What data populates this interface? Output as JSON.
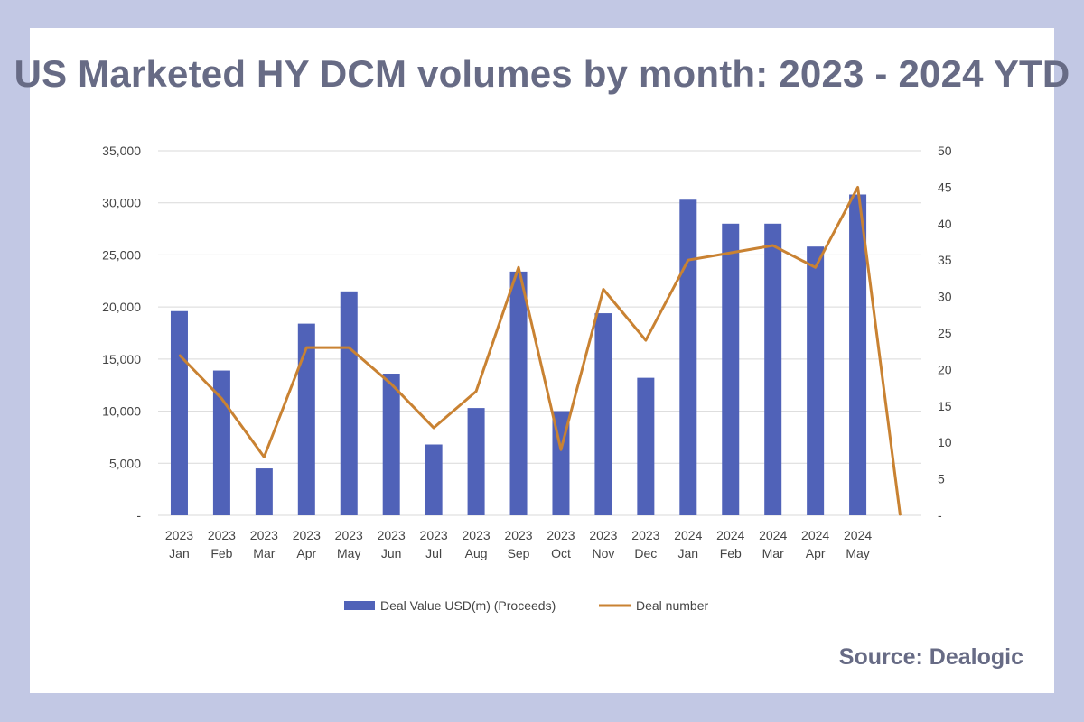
{
  "title": "US Marketed HY DCM volumes by month: 2023 - 2024 YTD",
  "source": "Source: Dealogic",
  "colors": {
    "background": "#c2c8e4",
    "panel": "#ffffff",
    "bar": "#5062b8",
    "line": "#c98232",
    "title": "#676b85",
    "grid": "#d9d9d9"
  },
  "chart_data": {
    "type": "bar",
    "categories": [
      [
        "2023",
        "Jan"
      ],
      [
        "2023",
        "Feb"
      ],
      [
        "2023",
        "Mar"
      ],
      [
        "2023",
        "Apr"
      ],
      [
        "2023",
        "May"
      ],
      [
        "2023",
        "Jun"
      ],
      [
        "2023",
        "Jul"
      ],
      [
        "2023",
        "Aug"
      ],
      [
        "2023",
        "Sep"
      ],
      [
        "2023",
        "Oct"
      ],
      [
        "2023",
        "Nov"
      ],
      [
        "2023",
        "Dec"
      ],
      [
        "2024",
        "Jan"
      ],
      [
        "2024",
        "Feb"
      ],
      [
        "2024",
        "Mar"
      ],
      [
        "2024",
        "Apr"
      ],
      [
        "2024",
        "May"
      ],
      [
        "",
        ""
      ]
    ],
    "series": [
      {
        "name": "Deal Value  USD(m) (Proceeds)",
        "type": "bar",
        "axis": "left",
        "values": [
          19600,
          13900,
          4500,
          18400,
          21500,
          13600,
          6800,
          10300,
          23400,
          10000,
          19400,
          13200,
          30300,
          28000,
          28000,
          25800,
          30800,
          null
        ]
      },
      {
        "name": "Deal number",
        "type": "line",
        "axis": "right",
        "values": [
          22,
          16,
          8,
          23,
          23,
          18,
          12,
          17,
          34,
          9,
          31,
          24,
          35,
          36,
          37,
          34,
          45,
          0
        ]
      }
    ],
    "y_left": {
      "ylim": [
        0,
        35000
      ],
      "ticks": [
        "-",
        "5,000",
        "10,000",
        "15,000",
        "20,000",
        "25,000",
        "30,000",
        "35,000"
      ],
      "tick_values": [
        0,
        5000,
        10000,
        15000,
        20000,
        25000,
        30000,
        35000
      ]
    },
    "y_right": {
      "ylim": [
        0,
        50
      ],
      "ticks": [
        "-",
        "5",
        "10",
        "15",
        "20",
        "25",
        "30",
        "35",
        "40",
        "45",
        "50"
      ],
      "tick_values": [
        0,
        5,
        10,
        15,
        20,
        25,
        30,
        35,
        40,
        45,
        50
      ]
    },
    "grid": true,
    "legend_position": "bottom"
  }
}
